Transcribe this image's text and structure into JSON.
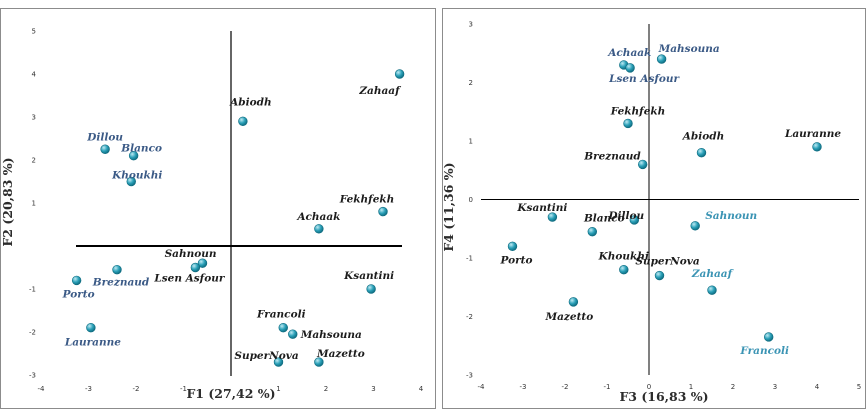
{
  "colors": {
    "dot_fill": "#2aa0b8",
    "dot_highlight": "#bfeaf3",
    "dot_edge": "#0f6c80",
    "label_dark": "#1c1c1c",
    "label_blue": "#3b5a86",
    "label_teal": "#3b94b4",
    "axis_line": "#000000"
  },
  "chart_data": [
    {
      "type": "scatter",
      "xlabel": "F1 (27,42 %)",
      "ylabel": "F2 (20,83 %)",
      "xlim": [
        -4,
        4
      ],
      "ylim": [
        -3,
        5
      ],
      "x_ticks": [
        -4,
        -3,
        -2,
        -1,
        0,
        1,
        2,
        3,
        4
      ],
      "x_tick_labels": [
        "-4",
        "-3",
        "-2",
        "-1",
        "",
        "1",
        "2",
        "3",
        "4"
      ],
      "y_ticks": [
        -3,
        -2,
        -1,
        0,
        1,
        2,
        3,
        4,
        5
      ],
      "y_tick_labels": [
        "-3",
        "-2",
        "-1",
        "",
        "1",
        "2",
        "3",
        "4",
        "5"
      ],
      "points": [
        {
          "label": "Zahaaf",
          "x": 3.55,
          "y": 4.0,
          "color": "dark",
          "anchor": "end",
          "dx": 0,
          "dy": 20
        },
        {
          "label": "Abiodh",
          "x": 0.25,
          "y": 2.9,
          "color": "dark",
          "anchor": "middle",
          "dx": 8,
          "dy": -16
        },
        {
          "label": "Dillou",
          "x": -2.65,
          "y": 2.25,
          "color": "blue",
          "anchor": "middle",
          "dx": 0,
          "dy": -9
        },
        {
          "label": "Blanco",
          "x": -2.05,
          "y": 2.1,
          "color": "blue",
          "anchor": "middle",
          "dx": 8,
          "dy": -4
        },
        {
          "label": "Khoukhi",
          "x": -2.1,
          "y": 1.5,
          "color": "blue",
          "anchor": "middle",
          "dx": 6,
          "dy": -3
        },
        {
          "label": "Fekhfekh",
          "x": 3.2,
          "y": 0.8,
          "color": "dark",
          "anchor": "middle",
          "dx": -16,
          "dy": -9
        },
        {
          "label": "Achaak",
          "x": 1.85,
          "y": 0.4,
          "color": "dark",
          "anchor": "middle",
          "dx": 0,
          "dy": -9
        },
        {
          "label": "Sahnoun",
          "x": -0.6,
          "y": -0.4,
          "color": "dark",
          "anchor": "end",
          "dx": 14,
          "dy": -6
        },
        {
          "label": "Lsen Asfour",
          "x": -0.75,
          "y": -0.5,
          "color": "dark",
          "anchor": "middle",
          "dx": -6,
          "dy": 14
        },
        {
          "label": "Breznaud",
          "x": -2.4,
          "y": -0.55,
          "color": "blue",
          "anchor": "middle",
          "dx": 4,
          "dy": 16
        },
        {
          "label": "Porto",
          "x": -3.25,
          "y": -0.8,
          "color": "blue",
          "anchor": "middle",
          "dx": 2,
          "dy": 17
        },
        {
          "label": "Ksantini",
          "x": 2.95,
          "y": -1.0,
          "color": "dark",
          "anchor": "middle",
          "dx": -2,
          "dy": -10
        },
        {
          "label": "Lauranne",
          "x": -2.95,
          "y": -1.9,
          "color": "blue",
          "anchor": "middle",
          "dx": 2,
          "dy": 18
        },
        {
          "label": "Francoli",
          "x": 1.1,
          "y": -1.9,
          "color": "dark",
          "anchor": "middle",
          "dx": -2,
          "dy": -10
        },
        {
          "label": "Mahsouna",
          "x": 1.3,
          "y": -2.05,
          "color": "dark",
          "anchor": "start",
          "dx": 8,
          "dy": 4
        },
        {
          "label": "SuperNova",
          "x": 1.0,
          "y": -2.7,
          "color": "dark",
          "anchor": "middle",
          "dx": -12,
          "dy": -3
        },
        {
          "label": "Mazetto",
          "x": 1.85,
          "y": -2.7,
          "color": "dark",
          "anchor": "middle",
          "dx": 22,
          "dy": -5
        }
      ]
    },
    {
      "type": "scatter",
      "xlabel": "F3 (16,83 %)",
      "ylabel": "F4 (11,36 %)",
      "xlim": [
        -4,
        5
      ],
      "ylim": [
        -3,
        3
      ],
      "x_ticks": [
        -4,
        -3,
        -2,
        -1,
        0,
        1,
        2,
        3,
        4,
        5
      ],
      "x_tick_labels": [
        "-4",
        "-3",
        "-2",
        "-1",
        "0",
        "1",
        "2",
        "3",
        "4",
        "5"
      ],
      "y_ticks": [
        -3,
        -2,
        -1,
        0,
        1,
        2,
        3
      ],
      "y_tick_labels": [
        "-3",
        "-2",
        "-1",
        "0",
        "1",
        "2",
        "3"
      ],
      "points": [
        {
          "label": "Achaak",
          "x": -0.6,
          "y": 2.3,
          "color": "blue",
          "anchor": "middle",
          "dx": 6,
          "dy": -9
        },
        {
          "label": "Mahsouna",
          "x": 0.3,
          "y": 2.4,
          "color": "blue",
          "anchor": "start",
          "dx": -3,
          "dy": -7
        },
        {
          "label": "Lsen Asfour",
          "x": -0.45,
          "y": 2.25,
          "color": "blue",
          "anchor": "middle",
          "dx": 14,
          "dy": 14
        },
        {
          "label": "Lauranne",
          "x": 4.0,
          "y": 0.9,
          "color": "dark",
          "anchor": "middle",
          "dx": -4,
          "dy": -10
        },
        {
          "label": "Fekhfekh",
          "x": -0.5,
          "y": 1.3,
          "color": "dark",
          "anchor": "middle",
          "dx": 10,
          "dy": -9
        },
        {
          "label": "Abiodh",
          "x": 1.25,
          "y": 0.8,
          "color": "dark",
          "anchor": "middle",
          "dx": 2,
          "dy": -13
        },
        {
          "label": "Breznaud",
          "x": -0.15,
          "y": 0.6,
          "color": "dark",
          "anchor": "end",
          "dx": -2,
          "dy": -5
        },
        {
          "label": "Ksantini",
          "x": -2.3,
          "y": -0.3,
          "color": "dark",
          "anchor": "middle",
          "dx": -10,
          "dy": -6
        },
        {
          "label": "Blanco",
          "x": -1.35,
          "y": -0.55,
          "color": "dark",
          "anchor": "middle",
          "dx": 12,
          "dy": -10
        },
        {
          "label": "Dillou",
          "x": -0.35,
          "y": -0.35,
          "color": "dark",
          "anchor": "middle",
          "dx": -8,
          "dy": -1
        },
        {
          "label": "Sahnoun",
          "x": 1.1,
          "y": -0.45,
          "color": "teal",
          "anchor": "start",
          "dx": 10,
          "dy": -7
        },
        {
          "label": "Porto",
          "x": -3.25,
          "y": -0.8,
          "color": "dark",
          "anchor": "middle",
          "dx": 4,
          "dy": 17
        },
        {
          "label": "Khoukhi",
          "x": -0.6,
          "y": -1.2,
          "color": "dark",
          "anchor": "middle",
          "dx": 0,
          "dy": -10
        },
        {
          "label": "SuperNova",
          "x": 0.25,
          "y": -1.3,
          "color": "dark",
          "anchor": "middle",
          "dx": 8,
          "dy": -11
        },
        {
          "label": "Zahaaf",
          "x": 1.5,
          "y": -1.55,
          "color": "teal",
          "anchor": "middle",
          "dx": 0,
          "dy": -13
        },
        {
          "label": "Mazetto",
          "x": -1.8,
          "y": -1.75,
          "color": "dark",
          "anchor": "middle",
          "dx": -4,
          "dy": 18
        },
        {
          "label": "Francoli",
          "x": 2.85,
          "y": -2.35,
          "color": "teal",
          "anchor": "middle",
          "dx": -4,
          "dy": 17
        }
      ]
    }
  ]
}
